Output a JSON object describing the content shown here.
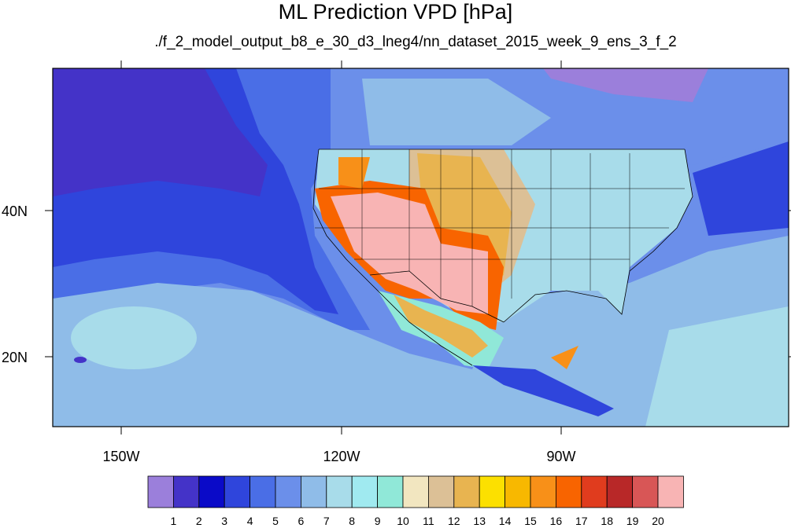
{
  "title": "ML Prediction VPD [hPa]",
  "subtitle": "./f_2_model_output_b8_e_30_d3_lneg4/nn_dataset_2015_week_9_ens_3_f_2",
  "axes": {
    "lon_labels": [
      "150W",
      "120W",
      "90W"
    ],
    "lat_labels": [
      "40N",
      "20N"
    ]
  },
  "colorbar": {
    "labels": [
      "1",
      "2",
      "3",
      "4",
      "5",
      "6",
      "7",
      "8",
      "9",
      "10",
      "11",
      "12",
      "13",
      "14",
      "15",
      "16",
      "17",
      "18",
      "19",
      "20"
    ],
    "colors": [
      "#9b7fdb",
      "#4433c8",
      "#0a0ac8",
      "#2f45dc",
      "#4a6ee6",
      "#6b8fea",
      "#8fbce8",
      "#a8dcea",
      "#a0eaf0",
      "#90e8d8",
      "#f2e6c0",
      "#dcc096",
      "#e8b450",
      "#fce000",
      "#f8b800",
      "#f89018",
      "#f86400",
      "#e03c1e",
      "#b82828",
      "#d85656",
      "#f8b4b4"
    ],
    "units": "hPa"
  },
  "map": {
    "ocean_far_color": "#4a6ee6",
    "ocean_near_color": "#6b8fea",
    "subtropics_color": "#8fbce8",
    "land_low_color": "#a8dcea",
    "desert_color": "#f8b4b4"
  }
}
